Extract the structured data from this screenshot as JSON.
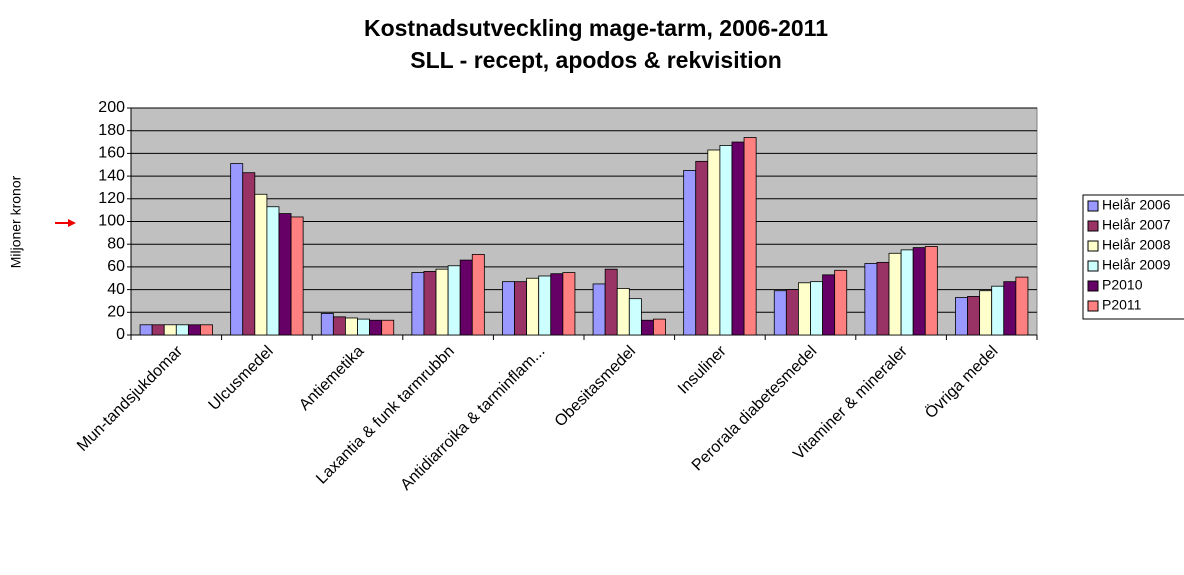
{
  "chart_data": {
    "type": "bar",
    "title": "Kostnadsutveckling mage-tarm, 2006-2011",
    "subtitle": "SLL - recept, apodos & rekvisition",
    "y_label": "Miljoner kronor",
    "categories": [
      "Mun-tandsjukdomar",
      "Ulcusmedel",
      "Antiemetika",
      "Laxantia & funk tarmrubbn",
      "Antidiarroika & tarminflam...",
      "Obesitasmedel",
      "Insuliner",
      "Perorala diabetesmedel",
      "Vitaminer & mineraler",
      "Övriga medel"
    ],
    "series": [
      {
        "name": "Helår 2006",
        "color": "#9999ff",
        "values": [
          9,
          151,
          19,
          55,
          47,
          45,
          145,
          39,
          63,
          33
        ]
      },
      {
        "name": "Helår 2007",
        "color": "#993366",
        "values": [
          9,
          143,
          16,
          56,
          47,
          58,
          153,
          40,
          64,
          34
        ]
      },
      {
        "name": "Helår 2008",
        "color": "#ffffcc",
        "values": [
          9,
          124,
          15,
          58,
          50,
          41,
          163,
          46,
          72,
          39
        ]
      },
      {
        "name": "Helår 2009",
        "color": "#ccffff",
        "values": [
          9,
          113,
          14,
          61,
          52,
          32,
          167,
          47,
          75,
          43
        ]
      },
      {
        "name": "P2010",
        "color": "#660066",
        "values": [
          9,
          107,
          13,
          66,
          54,
          13,
          170,
          53,
          77,
          47
        ]
      },
      {
        "name": "P2011",
        "color": "#ff8080",
        "values": [
          9,
          104,
          13,
          71,
          55,
          14,
          174,
          57,
          78,
          51
        ]
      }
    ],
    "ylim": [
      0,
      200
    ],
    "yticks": [
      0,
      20,
      40,
      60,
      80,
      100,
      120,
      140,
      160,
      180,
      200
    ],
    "grid": true,
    "legend": "right",
    "plot_background": "#c0c0c0"
  }
}
